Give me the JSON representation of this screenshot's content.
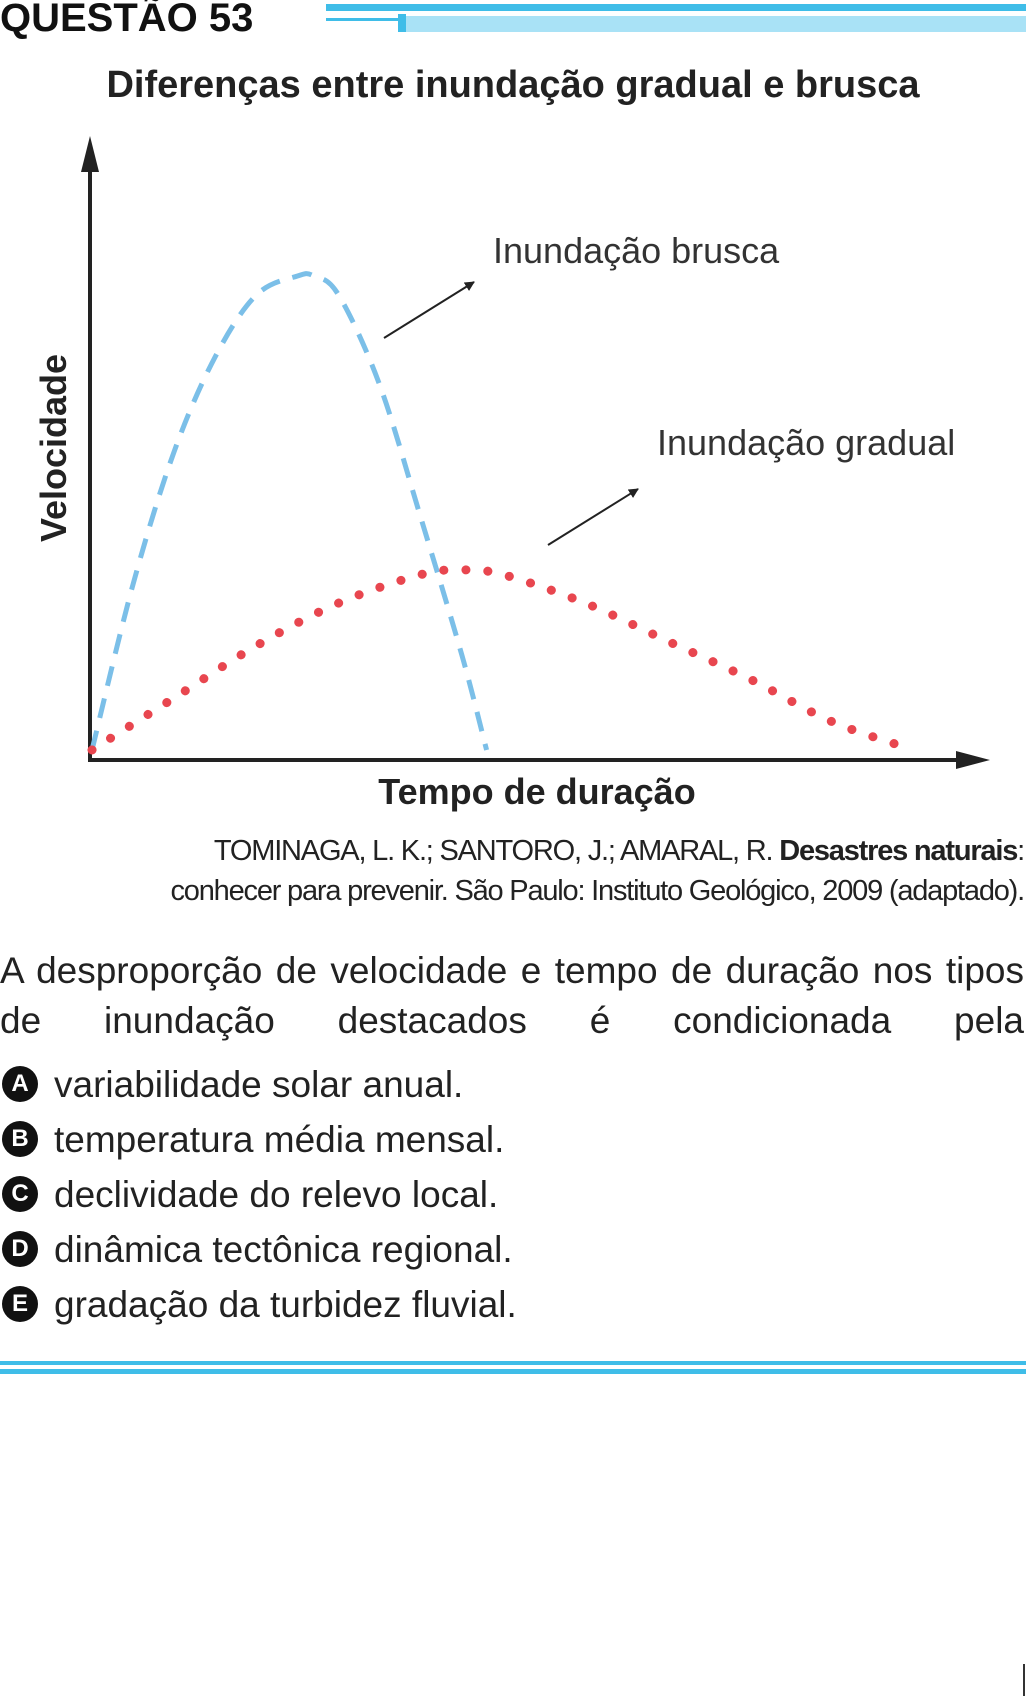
{
  "header": {
    "title": "QUESTÃO 53"
  },
  "chart_data": {
    "type": "line",
    "title": "Diferenças entre inundação gradual e brusca",
    "xlabel": "Tempo de duração",
    "ylabel": "Velocidade",
    "xlim": [
      0,
      100
    ],
    "ylim": [
      0,
      100
    ],
    "grid": false,
    "legend": "none",
    "series": [
      {
        "name": "Inundação brusca",
        "style": "dashed",
        "color": "#7bbfe8",
        "x": [
          0,
          5,
          10,
          15,
          20,
          25,
          27,
          30,
          35,
          40,
          45,
          48
        ],
        "y": [
          0,
          35,
          63,
          83,
          96,
          100,
          100,
          96,
          77,
          49,
          20,
          0
        ]
      },
      {
        "name": "Inundação gradual",
        "style": "dotted",
        "color": "#e8464f",
        "x": [
          0,
          10,
          20,
          30,
          40,
          45,
          50,
          60,
          70,
          80,
          90,
          100
        ],
        "y": [
          0,
          11,
          22,
          31,
          37,
          38,
          37,
          31,
          23,
          15,
          6,
          0
        ]
      }
    ],
    "annotations": [
      {
        "text": "Inundação brusca",
        "target": "Inundação brusca"
      },
      {
        "text": "Inundação gradual",
        "target": "Inundação gradual"
      }
    ]
  },
  "source": {
    "prefix": "TOMINAGA, L. K.; SANTORO, J.; AMARAL, R. ",
    "bold": "Desastres naturais",
    "suffix1": ":",
    "line2": "conhecer para prevenir. São Paulo: Instituto Geológico, 2009 (adaptado)."
  },
  "question": {
    "line1": "A desproporção de velocidade e tempo de duração nos",
    "line2": "tipos de inundação destacados é condicionada pela"
  },
  "options": [
    {
      "letter": "A",
      "text": "variabilidade solar anual."
    },
    {
      "letter": "B",
      "text": "temperatura média mensal."
    },
    {
      "letter": "C",
      "text": "declividade do relevo local."
    },
    {
      "letter": "D",
      "text": "dinâmica tectônica regional."
    },
    {
      "letter": "E",
      "text": "gradação da turbidez fluvial."
    }
  ]
}
